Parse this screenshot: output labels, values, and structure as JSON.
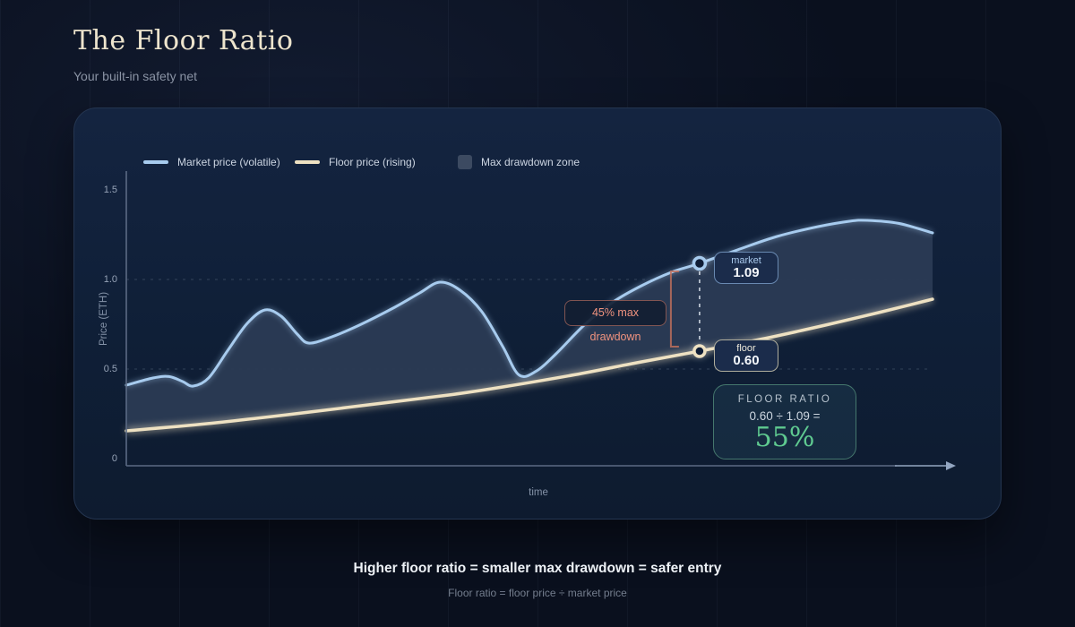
{
  "page": {
    "title": "The Floor Ratio",
    "subtitle": "Your built-in safety net",
    "footer_bold": "Higher floor ratio = smaller max drawdown = safer entry",
    "footer_sub": "Floor ratio = floor price ÷ market price"
  },
  "legend": {
    "market": "Market price (volatile)",
    "floor": "Floor price (rising)",
    "zone": "Max drawdown zone"
  },
  "axes": {
    "y_label": "Price (ETH)",
    "x_label": "time",
    "y_ticks": [
      "1.5",
      "1.0",
      "0.5",
      "0"
    ]
  },
  "annotations": {
    "drawdown_label": "45% max drawdown",
    "market_badge": {
      "label": "market",
      "value": "1.09"
    },
    "floor_badge": {
      "label": "floor",
      "value": "0.60"
    },
    "ratio_box": {
      "title": "FLOOR RATIO",
      "formula": "0.60 ÷ 1.09 =",
      "result": "55%"
    }
  },
  "colors": {
    "market_line": "#a7cbee",
    "floor_line": "#eee1c2",
    "drawdown_zone": "#2b3b54",
    "drawdown_accent": "#ef927e",
    "ratio_accent": "#5fca90",
    "card_bg": "#12223c",
    "page_bg": "#0a101e"
  },
  "chart_data": {
    "type": "area",
    "title": "The Floor Ratio",
    "xlabel": "time",
    "ylabel": "Price (ETH)",
    "ylim": [
      0,
      1.6
    ],
    "y_tick_values": [
      0,
      0.5,
      1.0,
      1.5
    ],
    "grid_values": [
      1.0,
      0.5
    ],
    "legend_position": "top-left",
    "series": [
      {
        "name": "Market price (volatile)",
        "color": "#a7cbee",
        "x": [
          0.0,
          0.033,
          0.053,
          0.07,
          0.083,
          0.102,
          0.126,
          0.15,
          0.172,
          0.192,
          0.212,
          0.226,
          0.252,
          0.289,
          0.333,
          0.364,
          0.389,
          0.414,
          0.441,
          0.467,
          0.487,
          0.508,
          0.533,
          0.569,
          0.604,
          0.639,
          0.676,
          0.711,
          0.758,
          0.807,
          0.858,
          0.897,
          0.919,
          0.958,
          1.0
        ],
        "y": [
          0.41,
          0.45,
          0.458,
          0.43,
          0.405,
          0.45,
          0.605,
          0.755,
          0.83,
          0.795,
          0.695,
          0.645,
          0.675,
          0.745,
          0.845,
          0.925,
          0.985,
          0.94,
          0.82,
          0.625,
          0.467,
          0.487,
          0.585,
          0.75,
          0.875,
          0.965,
          1.04,
          1.09,
          1.165,
          1.24,
          1.295,
          1.325,
          1.33,
          1.313,
          1.26
        ]
      },
      {
        "name": "Floor price (rising)",
        "color": "#eee1c2",
        "x": [
          0.0,
          0.1,
          0.2,
          0.3,
          0.4,
          0.467,
          0.556,
          0.633,
          0.711,
          0.789,
          0.867,
          0.933,
          1.0
        ],
        "y": [
          0.155,
          0.195,
          0.245,
          0.3,
          0.355,
          0.4,
          0.468,
          0.535,
          0.6,
          0.668,
          0.745,
          0.815,
          0.89
        ]
      }
    ],
    "highlight": {
      "x_frac": 0.711,
      "market": 1.09,
      "floor": 0.6,
      "drawdown_pct": 45,
      "floor_ratio_pct": 55
    }
  }
}
